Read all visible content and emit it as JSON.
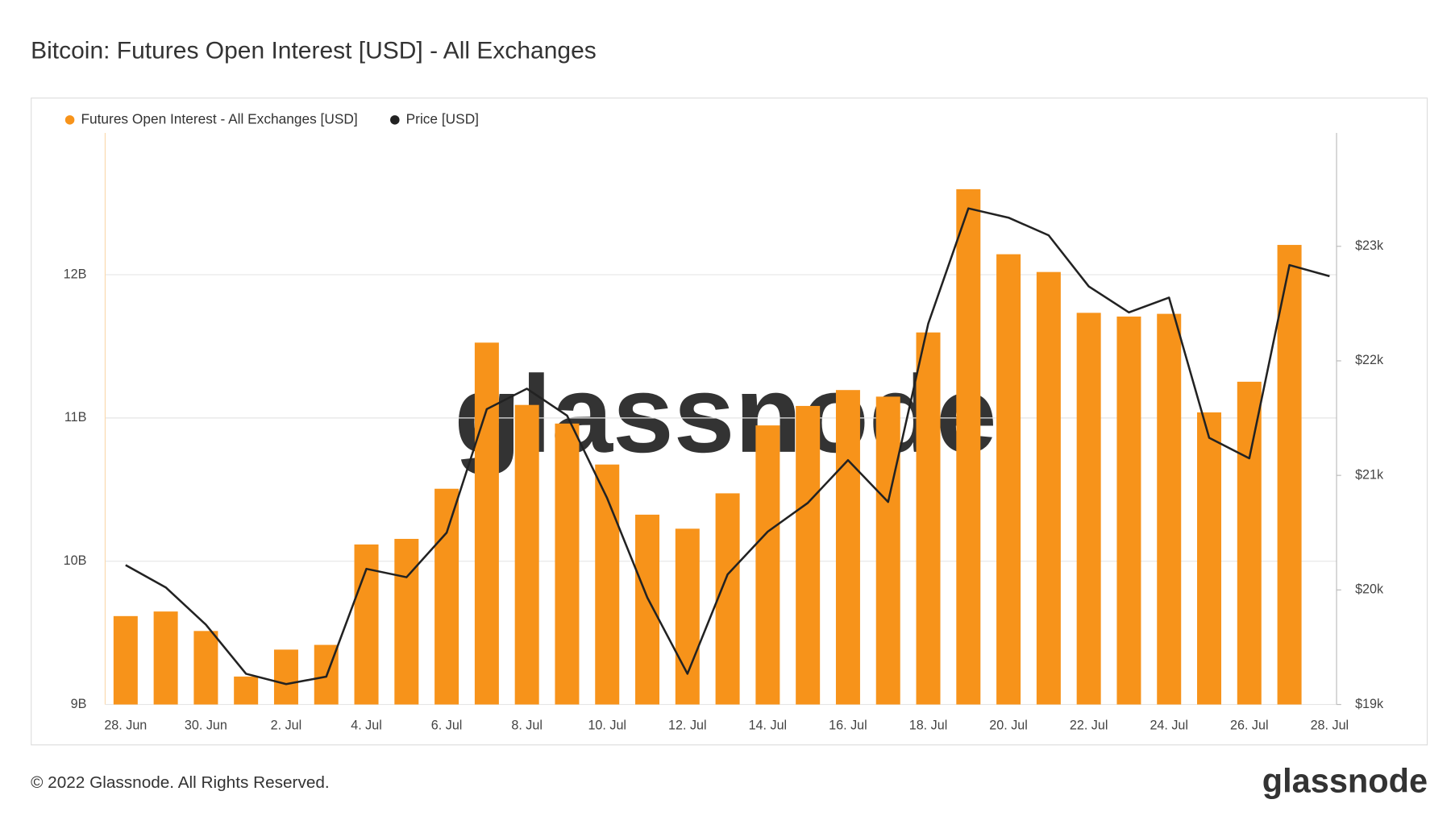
{
  "chart_data": {
    "type": "bar",
    "title": "Bitcoin: Futures Open Interest [USD] - All Exchanges",
    "watermark": "glassnode",
    "footer": "© 2022 Glassnode. All Rights Reserved.",
    "logo": "glassnode",
    "categories": [
      "28. Jun",
      null,
      "30. Jun",
      null,
      "2. Jul",
      null,
      "4. Jul",
      null,
      "6. Jul",
      null,
      "8. Jul",
      null,
      "10. Jul",
      null,
      "12. Jul",
      null,
      "14. Jul",
      null,
      "16. Jul",
      null,
      "18. Jul",
      null,
      "20. Jul",
      null,
      "22. Jul",
      null,
      "24. Jul",
      null,
      "26. Jul",
      null,
      "28. Jul"
    ],
    "series": [
      {
        "name": "Futures Open Interest - All Exchanges [USD]",
        "type": "bar",
        "color": "#f7931a",
        "axis": "y",
        "values": [
          9617000000,
          9649000000,
          9513000000,
          9195000000,
          9383000000,
          9416000000,
          10117000000,
          10156000000,
          10506000000,
          11526000000,
          11091000000,
          10961000000,
          10675000000,
          10325000000,
          10227000000,
          10474000000,
          10948000000,
          11084000000,
          11195000000,
          11149000000,
          11597000000,
          12597000000,
          12143000000,
          12019000000,
          11734000000,
          11708000000,
          11727000000,
          11039000000,
          11253000000,
          12208000000,
          null
        ]
      },
      {
        "name": "Price [USD]",
        "type": "line",
        "color": "#222222",
        "axis": "y2",
        "values": [
          20217,
          20022,
          19697,
          19268,
          19178,
          19243,
          20184,
          20111,
          20500,
          21579,
          21757,
          21522,
          20800,
          19933,
          19268,
          20135,
          20509,
          20760,
          21133,
          20768,
          22325,
          23331,
          23250,
          23096,
          22650,
          22423,
          22552,
          21328,
          21149,
          22836,
          22739
        ]
      }
    ],
    "ylim": [
      9000000000,
      12990000000
    ],
    "yticks": [
      {
        "value": 9000000000,
        "label": "9B"
      },
      {
        "value": 10000000000,
        "label": "10B"
      },
      {
        "value": 11000000000,
        "label": "11B"
      },
      {
        "value": 12000000000,
        "label": "12B"
      }
    ],
    "y2lim": [
      19000,
      23990
    ],
    "y2ticks": [
      {
        "value": 19000,
        "label": "$19k"
      },
      {
        "value": 20000,
        "label": "$20k"
      },
      {
        "value": 21000,
        "label": "$21k"
      },
      {
        "value": 22000,
        "label": "$22k"
      },
      {
        "value": 23000,
        "label": "$23k"
      }
    ],
    "grid": true,
    "legend": "top-left"
  }
}
